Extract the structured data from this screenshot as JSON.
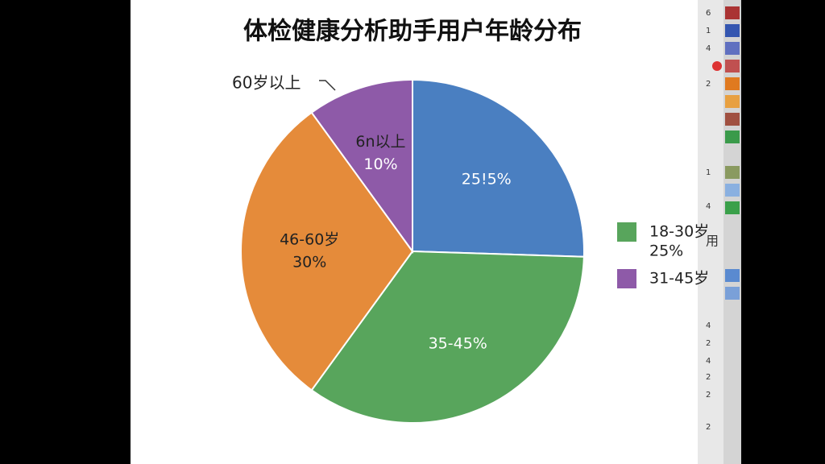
{
  "chart_data": {
    "type": "pie",
    "title": "体检健康分析助手用户年龄分布",
    "values": [
      25.5,
      34.5,
      30,
      10
    ],
    "value_labels": [
      "25!5%",
      "35-45%",
      "30%",
      "10%"
    ],
    "slice_names": [
      null,
      null,
      "46-60岁",
      "6n以上"
    ],
    "colors": [
      "#4a7fc1",
      "#58a55c",
      "#e58b3a",
      "#8e5aa8"
    ],
    "annotation": "60岁以上",
    "legend": [
      {
        "name": "18-30岁",
        "sub": "25%",
        "color": "#58a55c"
      },
      {
        "name": "31-45岁",
        "color": "#8e5aa8"
      }
    ]
  },
  "sidebar": {
    "labels": [
      "6",
      "1",
      "4",
      "2",
      "1",
      "4",
      "用",
      "4",
      "2",
      "4",
      "2",
      "2",
      "2"
    ]
  }
}
